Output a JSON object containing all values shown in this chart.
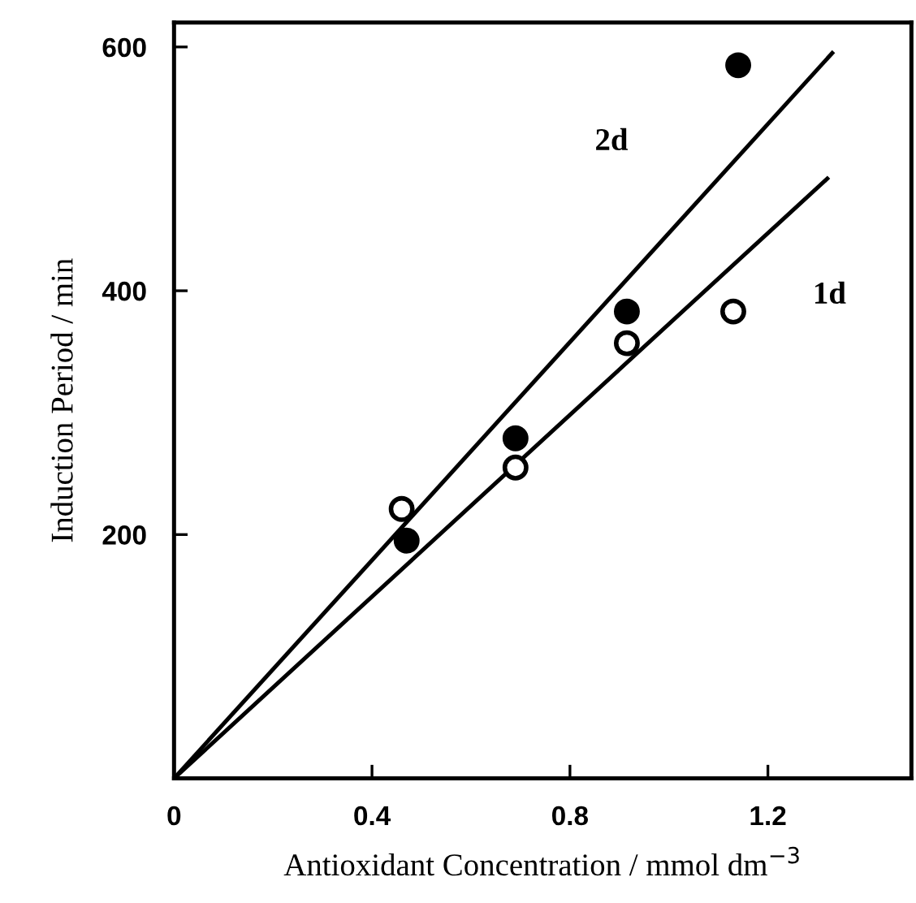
{
  "chart_data": {
    "type": "scatter",
    "xlabel": "Antioxidant Concentration / mmol dm$^{−3}$",
    "ylabel": "Induction Period / min",
    "xlim": [
      0,
      1.49
    ],
    "ylim": [
      0,
      620
    ],
    "xticks": [
      0,
      0.4,
      0.8,
      1.2
    ],
    "yticks": [
      {
        "value": 0,
        "label": null
      },
      200,
      400,
      600
    ],
    "grid": false,
    "series": [
      {
        "marker": "circle",
        "color": "#ffffff",
        "x": [
          0.46,
          0.69,
          0.915,
          1.13
        ],
        "values": [
          221,
          255,
          357,
          383
        ]
      },
      {
        "marker": "circle",
        "color": "#000000",
        "x": [
          0.47,
          0.69,
          0.915,
          1.14
        ],
        "values": [
          195,
          279,
          383,
          585
        ]
      },
      {
        "type": "line",
        "name": "1d",
        "color": "#000000",
        "x": [
          0,
          1.32
        ],
        "values": [
          0,
          492
        ]
      },
      {
        "type": "line",
        "name": "2d",
        "color": "#000000",
        "x": [
          0,
          1.33
        ],
        "values": [
          0,
          595
        ]
      }
    ]
  }
}
